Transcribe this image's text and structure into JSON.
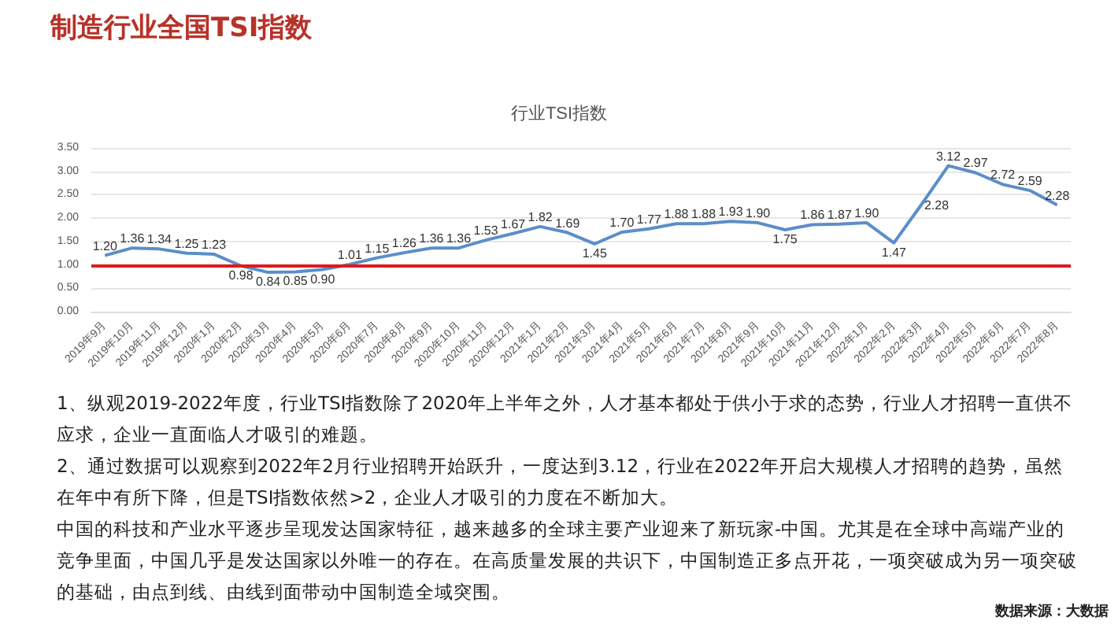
{
  "chart_data": {
    "type": "line",
    "title": "制造行业全国TSI指数",
    "subtitle": "行业TSI指数",
    "categories": [
      "2019年9月",
      "2019年10月",
      "2019年11月",
      "2019年12月",
      "2020年1月",
      "2020年2月",
      "2020年3月",
      "2020年4月",
      "2020年5月",
      "2020年6月",
      "2020年7月",
      "2020年8月",
      "2020年9月",
      "2020年10月",
      "2020年11月",
      "2020年12月",
      "2021年1月",
      "2021年2月",
      "2021年3月",
      "2021年4月",
      "2021年5月",
      "2021年6月",
      "2021年7月",
      "2021年8月",
      "2021年9月",
      "2021年10月",
      "2021年11月",
      "2021年12月",
      "2022年1月",
      "2022年2月",
      "2022年3月",
      "2022年4月",
      "2022年5月",
      "2022年6月",
      "2022年7月",
      "2022年8月"
    ],
    "series": [
      {
        "color": "#5b8ec9",
        "values": [
          1.2,
          1.36,
          1.34,
          1.25,
          1.23,
          0.98,
          0.84,
          0.85,
          0.9,
          1.01,
          1.15,
          1.26,
          1.36,
          1.36,
          1.53,
          1.67,
          1.82,
          1.69,
          1.45,
          1.7,
          1.77,
          1.88,
          1.88,
          1.93,
          1.9,
          1.75,
          1.86,
          1.87,
          1.9,
          1.47,
          2.28,
          3.12,
          2.97,
          2.72,
          2.59,
          2.28
        ],
        "value_labels": [
          "1.20",
          "1.36",
          "1.34",
          "1.25",
          "1.23",
          "0.98",
          "0.84",
          "0.85",
          "0.90",
          "1.01",
          "1.15",
          "1.26",
          "1.36",
          "1.36",
          "1.53",
          "1.67",
          "1.82",
          "1.69",
          "1.45",
          "1.70",
          "1.77",
          "1.88",
          "1.88",
          "1.93",
          "1.90",
          "1.75",
          "1.86",
          "1.87",
          "1.90",
          "1.47",
          "2.28",
          "3.12",
          "2.97",
          "2.72",
          "2.59",
          "2.28"
        ]
      }
    ],
    "ylim": [
      0,
      3.5
    ],
    "yticks": [
      {
        "value": 0,
        "label": "0.00"
      },
      {
        "value": 0.5,
        "label": "0.50"
      },
      {
        "value": 1,
        "label": "1.00"
      },
      {
        "value": 1.5,
        "label": "1.50"
      },
      {
        "value": 2,
        "label": "2.00"
      },
      {
        "value": 2.5,
        "label": "2.50"
      },
      {
        "value": 3,
        "label": "3.00"
      },
      {
        "value": 3.5,
        "label": "3.50"
      }
    ],
    "ref_lines": [
      {
        "axis": "y",
        "value": 1,
        "color": "#e0191b"
      }
    ],
    "grid": "y",
    "marker": "none",
    "line_style": "solid",
    "annotations": [
      "1、纵观2019-2022年度，行业TSI指数除了2020年上半年之外，人才基本都处于供小于求的态势，行业人才招聘一直供不应求，企业一直面临人才吸引的难题。",
      "2、通过数据可以观察到2022年2月行业招聘开始跃升，一度达到3.12，行业在2022年开启大规模人才招聘的趋势，虽然在年中有所下降，但是TSI指数依然>2，企业人才吸引的力度在不断加大。",
      "中国的科技和产业水平逐步呈现发达国家特征，越来越多的全球主要产业迎来了新玩家-中国。尤其是在全球中高端产业的竞争里面，中国几乎是发达国家以外唯一的存在。在高质量发展的共识下，中国制造正多点开花，一项突破成为另一项突破的基础，由点到线、由线到面带动中国制造全域突围。",
      "数据来源：大数据"
    ]
  }
}
